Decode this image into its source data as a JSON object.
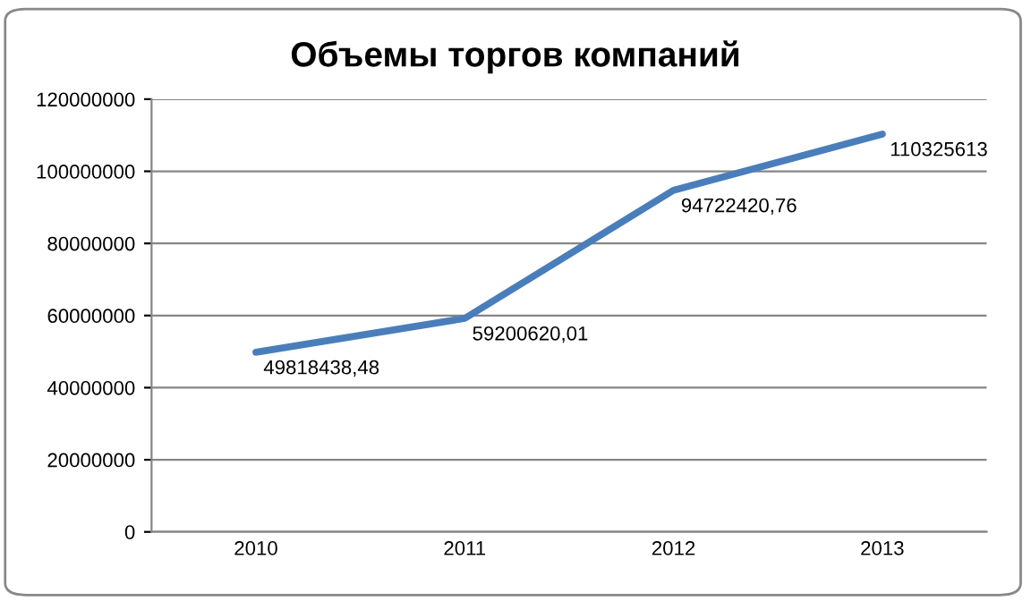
{
  "chart_data": {
    "type": "line",
    "title": "Объемы торгов компаний",
    "categories": [
      "2010",
      "2011",
      "2012",
      "2013"
    ],
    "series": [
      {
        "color": "#4a7ebb",
        "values": [
          49818438.48,
          59200620.01,
          94722420.76,
          110325613
        ],
        "value_labels": [
          "49818438,48",
          "59200620,01",
          "94722420,76",
          "110325613"
        ]
      }
    ],
    "ylim": [
      0,
      120000000
    ],
    "yticks": [
      0,
      20000000,
      40000000,
      60000000,
      80000000,
      100000000,
      120000000
    ],
    "grid": "y",
    "marker": "none",
    "line_style": "solid",
    "legend": false
  }
}
